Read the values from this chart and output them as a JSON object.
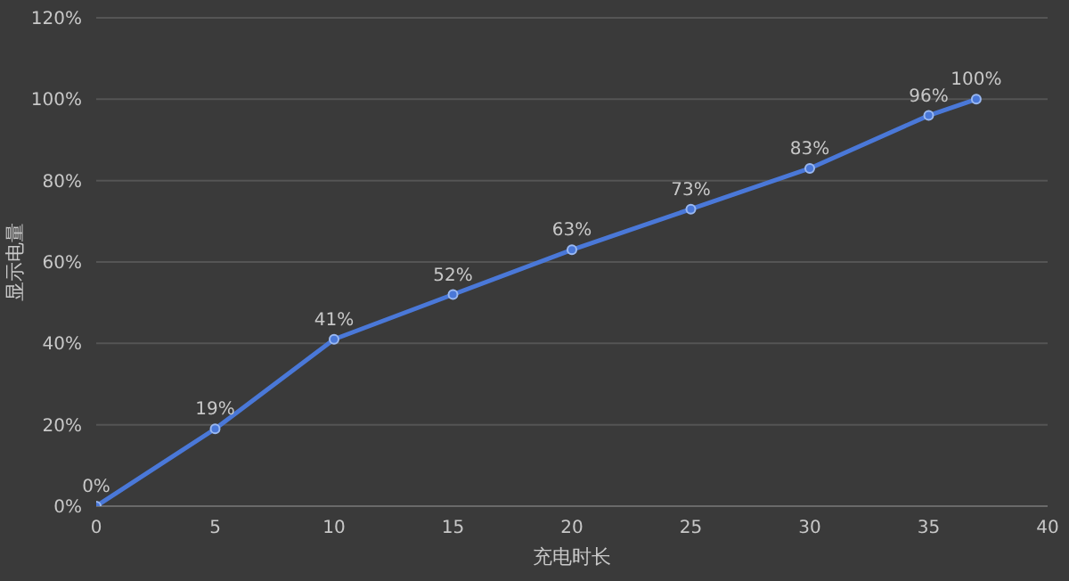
{
  "chart_data": {
    "type": "line",
    "xlabel": "充电时长",
    "ylabel": "显示电量",
    "x": [
      0,
      5,
      10,
      15,
      20,
      25,
      30,
      35,
      37
    ],
    "series": [
      {
        "color": "#4a78d8",
        "values": [
          0,
          19,
          41,
          52,
          63,
          73,
          83,
          96,
          100
        ],
        "value_labels": [
          "0%",
          "19%",
          "41%",
          "52%",
          "63%",
          "73%",
          "83%",
          "96%",
          "100%"
        ]
      }
    ],
    "xlim": [
      0,
      40
    ],
    "xticks": [
      0,
      5,
      10,
      15,
      20,
      25,
      30,
      35,
      40
    ],
    "ylim": [
      0,
      120
    ],
    "yticks": [
      {
        "value": 0,
        "label": "0%"
      },
      {
        "value": 20,
        "label": "20%"
      },
      {
        "value": 40,
        "label": "40%"
      },
      {
        "value": 60,
        "label": "60%"
      },
      {
        "value": 80,
        "label": "80%"
      },
      {
        "value": 100,
        "label": "100%"
      },
      {
        "value": 120,
        "label": "120%"
      }
    ],
    "grid": "y",
    "marker": "circle",
    "line_style": "solid"
  }
}
